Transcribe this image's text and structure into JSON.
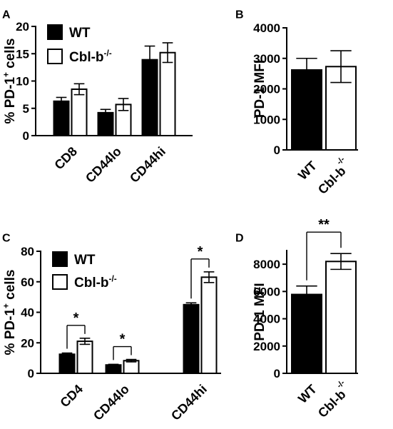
{
  "chart_data": [
    {
      "panel": "A",
      "type": "bar",
      "ylabel": "% PD-1",
      "ylabel_sup": "+",
      "ylabel_tail": " cells",
      "ylim": [
        0,
        20
      ],
      "yticks": [
        "0",
        "5",
        "10",
        "15",
        "20"
      ],
      "categories": [
        "CD8",
        "CD44lo",
        "CD44hi"
      ],
      "legend": [
        {
          "name": "WT",
          "sup": ""
        },
        {
          "name": "Cbl-b",
          "sup": "-/-"
        }
      ],
      "series": [
        {
          "values": [
            6.3,
            4.2,
            13.9
          ],
          "errors": [
            0.7,
            0.6,
            2.5
          ],
          "fill": "#000000"
        },
        {
          "values": [
            8.5,
            5.7,
            15.2
          ],
          "errors": [
            1.0,
            1.1,
            1.8
          ],
          "fill": "#ffffff"
        }
      ]
    },
    {
      "panel": "B",
      "type": "bar",
      "ylabel": "PD-1 MFI",
      "ylim": [
        0,
        4000
      ],
      "yticks": [
        "0",
        "1000",
        "2000",
        "3000",
        "4000"
      ],
      "categories": [
        {
          "name": "WT",
          "sup": ""
        },
        {
          "name": "Cbl-b",
          "sup": "-/-"
        }
      ],
      "values": [
        2620,
        2730
      ],
      "errors": [
        380,
        520
      ],
      "fills": [
        "#000000",
        "#ffffff"
      ]
    },
    {
      "panel": "C",
      "type": "bar",
      "ylabel": "% PD-1",
      "ylabel_sup": "+",
      "ylabel_tail": " cells",
      "ylim": [
        0,
        80
      ],
      "yticks": [
        "0",
        "20",
        "40",
        "60",
        "80"
      ],
      "categories": [
        "CD4",
        "CD44lo",
        "CD44hi"
      ],
      "legend": [
        {
          "name": "WT",
          "sup": ""
        },
        {
          "name": "Cbl-b",
          "sup": "-/-"
        }
      ],
      "series": [
        {
          "values": [
            12.5,
            5.5,
            45.0
          ],
          "errors": [
            0.8,
            0.4,
            1.2
          ],
          "fill": "#000000"
        },
        {
          "values": [
            21.0,
            8.3,
            63.0
          ],
          "errors": [
            2.0,
            0.8,
            3.5
          ],
          "fill": "#ffffff"
        }
      ],
      "annotations": [
        "*",
        "*",
        "*"
      ]
    },
    {
      "panel": "D",
      "type": "bar",
      "ylabel": "PD-1 MFI",
      "ylim": [
        0,
        9000
      ],
      "yticks": [
        "0",
        "2000",
        "4000",
        "6000",
        "8000"
      ],
      "categories": [
        {
          "name": "WT",
          "sup": ""
        },
        {
          "name": "Cbl-b",
          "sup": "-/-"
        }
      ],
      "values": [
        5780,
        8200
      ],
      "errors": [
        620,
        580
      ],
      "fills": [
        "#000000",
        "#ffffff"
      ],
      "annotations": [
        "**"
      ]
    }
  ]
}
